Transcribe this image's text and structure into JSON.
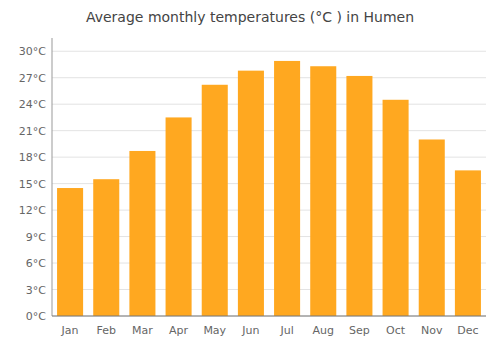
{
  "chart_data": {
    "type": "bar",
    "title": "Average monthly temperatures (°C ) in Humen",
    "categories": [
      "Jan",
      "Feb",
      "Mar",
      "Apr",
      "May",
      "Jun",
      "Jul",
      "Aug",
      "Sep",
      "Oct",
      "Nov",
      "Dec"
    ],
    "values": [
      14.5,
      15.5,
      18.7,
      22.5,
      26.2,
      27.8,
      28.9,
      28.3,
      27.2,
      24.5,
      20.0,
      16.5
    ],
    "color": "#FFA820",
    "ylim": [
      0,
      31.5
    ],
    "yticks": [
      {
        "value": 0,
        "label": "0°C"
      },
      {
        "value": 3,
        "label": "3°C"
      },
      {
        "value": 6,
        "label": "6°C"
      },
      {
        "value": 9,
        "label": "9°C"
      },
      {
        "value": 12,
        "label": "12°C"
      },
      {
        "value": 15,
        "label": "15°C"
      },
      {
        "value": 18,
        "label": "18°C"
      },
      {
        "value": 21,
        "label": "21°C"
      },
      {
        "value": 24,
        "label": "24°C"
      },
      {
        "value": 27,
        "label": "27°C"
      },
      {
        "value": 30,
        "label": "30°C"
      }
    ],
    "grid": true
  }
}
